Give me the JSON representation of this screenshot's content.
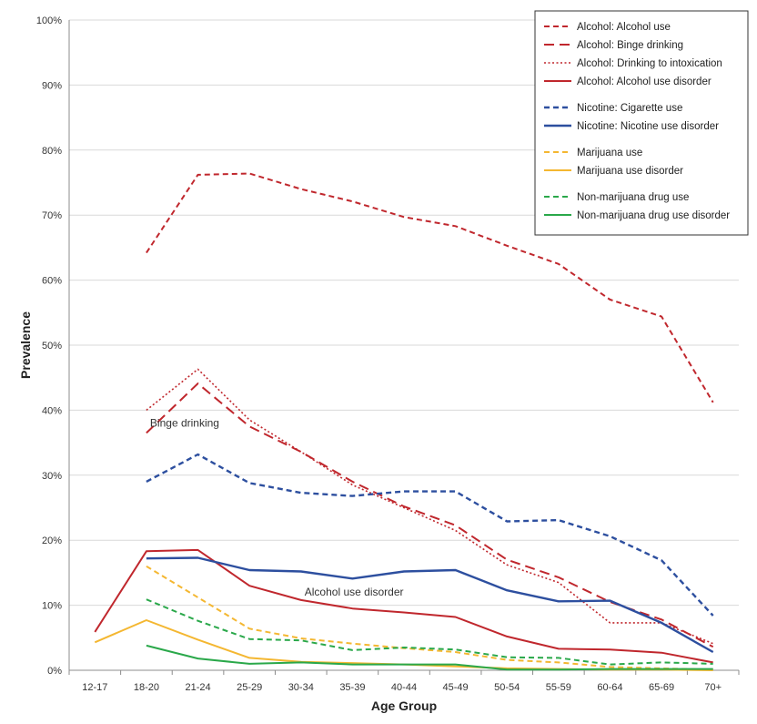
{
  "chart_data": {
    "type": "line",
    "xlabel": "Age Group",
    "ylabel": "Prevalence",
    "ylim": [
      0,
      100
    ],
    "yticks": [
      "0%",
      "10%",
      "20%",
      "30%",
      "40%",
      "50%",
      "60%",
      "70%",
      "80%",
      "90%",
      "100%"
    ],
    "grid": "horizontal",
    "legend_position": "top-right",
    "categories": [
      "12-17",
      "18-20",
      "21-24",
      "25-29",
      "30-34",
      "35-39",
      "40-44",
      "45-49",
      "50-54",
      "55-59",
      "60-64",
      "65-69",
      "70+"
    ],
    "series": [
      {
        "name": "Alcohol: Alcohol use",
        "color": "#c0272d",
        "dash": "dashed-fine",
        "width": 2,
        "values": [
          null,
          64.2,
          76.2,
          76.4,
          74.0,
          72.1,
          69.7,
          68.3,
          65.3,
          62.5,
          57.0,
          54.4,
          41.2
        ]
      },
      {
        "name": "Alcohol: Binge drinking",
        "color": "#c0272d",
        "dash": "dashed-long",
        "width": 2,
        "values": [
          null,
          36.5,
          44.1,
          37.5,
          33.6,
          29.0,
          25.2,
          22.3,
          17.0,
          14.3,
          10.5,
          7.8,
          3.6
        ]
      },
      {
        "name": "Alcohol: Drinking to intoxication",
        "color": "#c0272d",
        "dash": "dotted",
        "width": 1.6,
        "values": [
          null,
          40.0,
          46.3,
          38.5,
          33.6,
          28.5,
          25.0,
          21.5,
          16.2,
          13.5,
          7.3,
          7.3,
          4.1
        ]
      },
      {
        "name": "Alcohol: Alcohol use disorder",
        "color": "#c0272d",
        "dash": "solid",
        "width": 2,
        "values": [
          5.9,
          18.3,
          18.5,
          13.0,
          10.8,
          9.5,
          8.9,
          8.2,
          5.2,
          3.3,
          3.2,
          2.7,
          1.2
        ]
      },
      {
        "name": "Nicotine: Cigarette use",
        "color": "#2d4f9f",
        "dash": "dashed-fine",
        "width": 2.4,
        "values": [
          null,
          29.0,
          33.2,
          28.8,
          27.3,
          26.8,
          27.5,
          27.5,
          22.9,
          23.1,
          20.6,
          16.9,
          8.4
        ]
      },
      {
        "name": "Nicotine: Nicotine use disorder",
        "color": "#2d4f9f",
        "dash": "solid",
        "width": 2.4,
        "values": [
          null,
          17.2,
          17.3,
          15.4,
          15.2,
          14.1,
          15.2,
          15.4,
          12.3,
          10.6,
          10.7,
          7.3,
          2.8
        ]
      },
      {
        "name": "Marijuana use",
        "color": "#f4b731",
        "dash": "dashed-fine",
        "width": 2,
        "values": [
          null,
          16.0,
          11.2,
          6.4,
          4.9,
          4.1,
          3.4,
          2.8,
          1.6,
          1.2,
          0.5,
          0.3,
          0.1
        ]
      },
      {
        "name": "Marijuana use disorder",
        "color": "#f4b731",
        "dash": "solid",
        "width": 2,
        "values": [
          4.3,
          7.7,
          4.7,
          1.9,
          1.3,
          1.1,
          0.9,
          0.6,
          0.3,
          0.2,
          0.1,
          0.1,
          0.0
        ]
      },
      {
        "name": "Non-marijuana drug use",
        "color": "#2aa84a",
        "dash": "dashed-fine",
        "width": 2,
        "values": [
          null,
          10.9,
          7.6,
          4.8,
          4.6,
          3.1,
          3.5,
          3.2,
          2.0,
          1.9,
          0.9,
          1.2,
          1.0
        ]
      },
      {
        "name": "Non-marijuana drug use disorder",
        "color": "#2aa84a",
        "dash": "solid",
        "width": 2,
        "values": [
          null,
          3.8,
          1.8,
          1.0,
          1.2,
          0.9,
          0.9,
          0.9,
          0.1,
          0.1,
          0.2,
          0.2,
          0.2
        ]
      }
    ],
    "legend_groups": [
      [
        0,
        1,
        2,
        3
      ],
      [
        4,
        5
      ],
      [
        6,
        7
      ],
      [
        8,
        9
      ]
    ],
    "annotations": [
      {
        "text": "Binge drinking",
        "x": "18-20",
        "y": 37.5
      },
      {
        "text": "Alcohol use disorder",
        "x": "30-34",
        "y": 11.5
      }
    ]
  }
}
